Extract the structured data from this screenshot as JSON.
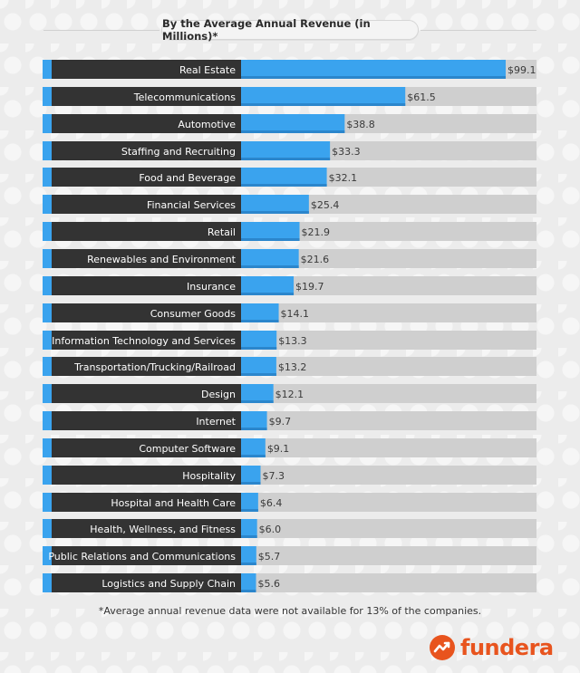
{
  "title": "By the Average Annual Revenue (in Millions)*",
  "footnote": "*Average annual revenue data were not available for 13% of the companies.",
  "brand": {
    "name": "fundera",
    "logo_icon": "trend-arrow-icon",
    "color": "#e8541e"
  },
  "colors": {
    "label_band": "#333333",
    "bar": "#3aa3ee",
    "track": "#cfcfcf",
    "background": "#ececec"
  },
  "chart_data": {
    "type": "bar",
    "orientation": "horizontal",
    "title": "By the Average Annual Revenue (in Millions)*",
    "xlim": [
      0,
      102
    ],
    "grid": false,
    "categories": [
      "Real Estate",
      "Telecommunications",
      "Automotive",
      "Staffing and Recruiting",
      "Food and Beverage",
      "Financial Services",
      "Retail",
      "Renewables and Environment",
      "Insurance",
      "Consumer Goods",
      "Information Technology and Services",
      "Transportation/Trucking/Railroad",
      "Design",
      "Internet",
      "Computer Software",
      "Hospitality",
      "Hospital and Health Care",
      "Health, Wellness, and Fitness",
      "Public Relations and Communications",
      "Logistics and Supply Chain"
    ],
    "values": [
      99.1,
      61.5,
      38.8,
      33.3,
      32.1,
      25.4,
      21.9,
      21.6,
      19.7,
      14.1,
      13.3,
      13.2,
      12.1,
      9.7,
      9.1,
      7.3,
      6.4,
      6.0,
      5.7,
      5.6
    ],
    "value_labels": [
      "$99.1",
      "$61.5",
      "$38.8",
      "$33.3",
      "$32.1",
      "$25.4",
      "$21.9",
      "$21.6",
      "$19.7",
      "$14.1",
      "$13.3",
      "$13.2",
      "$12.1",
      "$9.7",
      "$9.1",
      "$7.3",
      "$6.4",
      "$6.0",
      "$5.7",
      "$5.6"
    ]
  }
}
